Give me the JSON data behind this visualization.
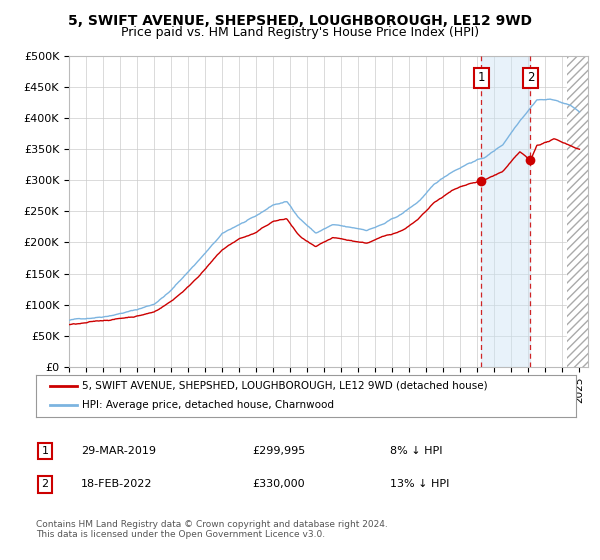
{
  "title": "5, SWIFT AVENUE, SHEPSHED, LOUGHBOROUGH, LE12 9WD",
  "subtitle": "Price paid vs. HM Land Registry's House Price Index (HPI)",
  "ylabel_ticks": [
    "£0",
    "£50K",
    "£100K",
    "£150K",
    "£200K",
    "£250K",
    "£300K",
    "£350K",
    "£400K",
    "£450K",
    "£500K"
  ],
  "ytick_values": [
    0,
    50000,
    100000,
    150000,
    200000,
    250000,
    300000,
    350000,
    400000,
    450000,
    500000
  ],
  "xlim_start": 1995.0,
  "xlim_end": 2025.5,
  "ylim": [
    0,
    500000
  ],
  "bg_color": "#ffffff",
  "grid_color": "#cccccc",
  "hpi_color": "#7cb4e0",
  "price_color": "#cc0000",
  "sale1_x": 2019.24,
  "sale1_y": 299995,
  "sale2_x": 2022.12,
  "sale2_y": 330000,
  "legend_label1": "5, SWIFT AVENUE, SHEPSHED, LOUGHBOROUGH, LE12 9WD (detached house)",
  "legend_label2": "HPI: Average price, detached house, Charnwood",
  "annotation1_label": "1",
  "annotation1_date": "29-MAR-2019",
  "annotation1_price": "£299,995",
  "annotation1_pct": "8% ↓ HPI",
  "annotation2_label": "2",
  "annotation2_date": "18-FEB-2022",
  "annotation2_price": "£330,000",
  "annotation2_pct": "13% ↓ HPI",
  "footer": "Contains HM Land Registry data © Crown copyright and database right 2024.\nThis data is licensed under the Open Government Licence v3.0.",
  "hpi_anchors_x": [
    1995.0,
    1996.0,
    1997.0,
    1998.0,
    1999.0,
    2000.0,
    2001.0,
    2002.0,
    2003.0,
    2004.0,
    2005.0,
    2006.0,
    2007.0,
    2007.8,
    2008.5,
    2009.5,
    2010.5,
    2011.5,
    2012.5,
    2013.5,
    2014.5,
    2015.5,
    2016.5,
    2017.5,
    2018.5,
    2019.5,
    2020.5,
    2021.5,
    2022.5,
    2023.5,
    2024.5,
    2025.0
  ],
  "hpi_anchors_y": [
    75000,
    78000,
    82000,
    88000,
    94000,
    103000,
    125000,
    155000,
    185000,
    215000,
    230000,
    242000,
    260000,
    265000,
    240000,
    215000,
    228000,
    222000,
    218000,
    228000,
    242000,
    262000,
    290000,
    310000,
    325000,
    335000,
    355000,
    395000,
    430000,
    430000,
    420000,
    410000
  ],
  "price_anchors_x": [
    1995.0,
    1996.0,
    1997.0,
    1998.0,
    1999.0,
    2000.0,
    2001.0,
    2002.0,
    2003.0,
    2004.0,
    2005.0,
    2006.0,
    2007.0,
    2007.8,
    2008.5,
    2009.5,
    2010.5,
    2011.5,
    2012.5,
    2013.5,
    2014.5,
    2015.5,
    2016.5,
    2017.5,
    2018.5,
    2019.24,
    2019.5,
    2020.5,
    2021.5,
    2022.12,
    2022.5,
    2023.5,
    2024.5,
    2025.0
  ],
  "price_anchors_y": [
    68000,
    70000,
    74000,
    78000,
    83000,
    90000,
    108000,
    132000,
    162000,
    192000,
    210000,
    220000,
    238000,
    242000,
    215000,
    195000,
    208000,
    203000,
    200000,
    210000,
    220000,
    238000,
    265000,
    283000,
    295000,
    299995,
    302000,
    315000,
    345000,
    330000,
    355000,
    365000,
    355000,
    350000
  ]
}
